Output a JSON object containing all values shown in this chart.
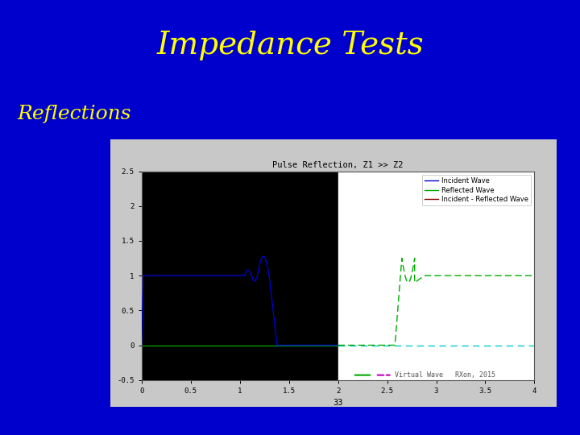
{
  "slide_bg": "#0000cc",
  "title": "Impedance Tests",
  "title_color": "#ffff00",
  "title_fontsize": 28,
  "subtitle": "Reflections",
  "subtitle_color": "#ffff00",
  "subtitle_fontsize": 18,
  "plot_title": "Pulse Reflection, Z1 >> Z2",
  "xlabel": "33",
  "xlim": [
    0,
    4
  ],
  "ylim": [
    -0.5,
    2.5
  ],
  "xticks": [
    0,
    0.5,
    1,
    1.5,
    2,
    2.5,
    3,
    3.5,
    4
  ],
  "yticks": [
    -0.5,
    0,
    0.5,
    1,
    1.5,
    2,
    2.5
  ],
  "ytick_labels": [
    "-0.5",
    "0",
    "0.5",
    "1",
    "1.5",
    "2",
    "2.5"
  ],
  "xtick_labels": [
    "0",
    "0.5",
    "1",
    "1.5",
    "2",
    "2.5",
    "3",
    "3.5",
    "4"
  ],
  "legend_labels": [
    "Incident Wave",
    "Reflected Wave",
    "Incident - Reflected Wave"
  ],
  "legend_colors": [
    "#0000cc",
    "#00aa00",
    "#880000"
  ],
  "annotation": "Virtual Wave   RXon, 2015",
  "split_x": 2.0
}
